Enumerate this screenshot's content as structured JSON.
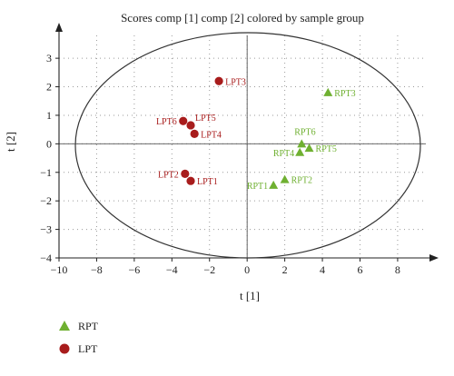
{
  "chart_data": {
    "type": "scatter",
    "title": "Scores comp [1] comp [2] colored by sample group",
    "xlabel": "t [1]",
    "ylabel": "t [2]",
    "xlim": [
      -10,
      9.5
    ],
    "ylim": [
      -4,
      3.8
    ],
    "x_ticks": [
      -10,
      -8,
      -6,
      -4,
      -2,
      0,
      2,
      4,
      6,
      8
    ],
    "y_ticks": [
      -4,
      -3,
      -2,
      -1,
      0,
      1,
      2,
      3
    ],
    "grid": true,
    "grid_style": "dotted",
    "confidence_ellipse": true,
    "legend_position": "bottom-left",
    "series": [
      {
        "name": "RPT",
        "marker": "triangle",
        "color": "#6fb031",
        "points": [
          {
            "label": "RPT1",
            "x": 1.4,
            "y": -1.45
          },
          {
            "label": "RPT2",
            "x": 2.0,
            "y": -1.25
          },
          {
            "label": "RPT3",
            "x": 4.3,
            "y": 1.8
          },
          {
            "label": "RPT4",
            "x": 2.8,
            "y": -0.3
          },
          {
            "label": "RPT5",
            "x": 3.3,
            "y": -0.15
          },
          {
            "label": "RPT6",
            "x": 2.9,
            "y": 0.0
          }
        ]
      },
      {
        "name": "LPT",
        "marker": "circle",
        "color": "#a81c1c",
        "points": [
          {
            "label": "LPT1",
            "x": -3.0,
            "y": -1.3
          },
          {
            "label": "LPT2",
            "x": -3.3,
            "y": -1.05
          },
          {
            "label": "LPT3",
            "x": -1.5,
            "y": 2.2
          },
          {
            "label": "LPT4",
            "x": -2.8,
            "y": 0.35
          },
          {
            "label": "LPT5",
            "x": -3.0,
            "y": 0.65
          },
          {
            "label": "LPT6",
            "x": -3.4,
            "y": 0.8
          }
        ]
      }
    ]
  }
}
